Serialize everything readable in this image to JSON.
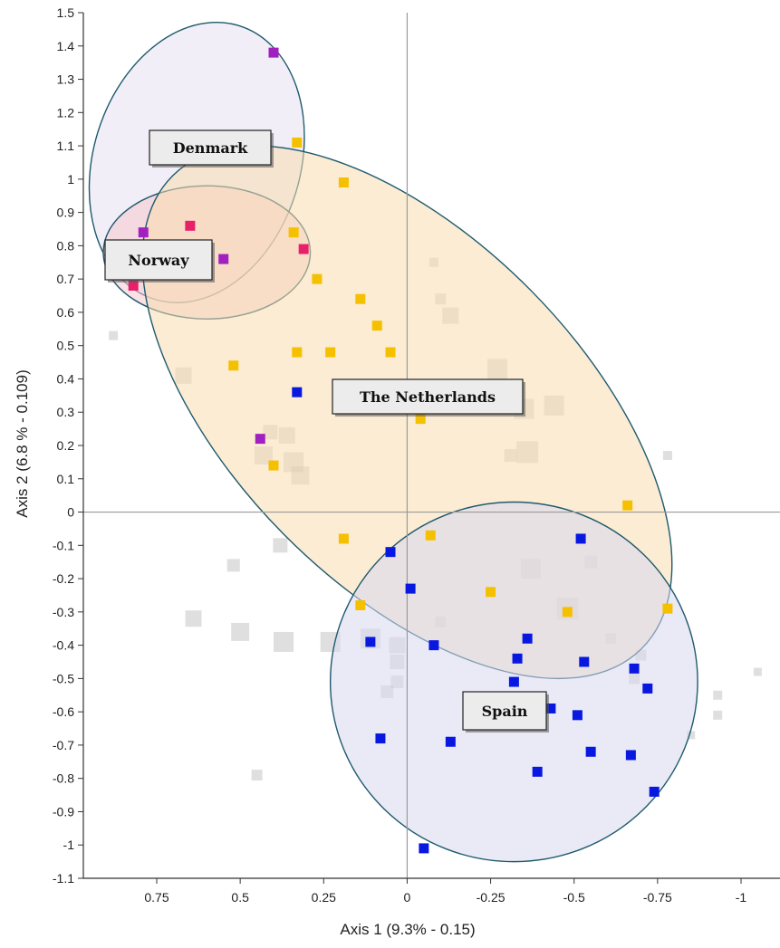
{
  "chart_data": {
    "type": "scatter",
    "title": "",
    "xlabel": "Axis 1 (9.3% - 0.15)",
    "ylabel": "Axis 2 (6.8 % - 0.109)",
    "x_axis_reversed": true,
    "xlim": [
      0.97,
      -1.1
    ],
    "ylim": [
      -1.15,
      1.5
    ],
    "x_ticks": [
      0.75,
      0.5,
      0.25,
      0,
      -0.25,
      -0.5,
      -0.75,
      -1
    ],
    "x_tick_labels": [
      "0.75",
      "0.5",
      "0.25",
      "0",
      "-0.25",
      "-0.5",
      "-0.75",
      "-1"
    ],
    "y_ticks": [
      1.5,
      1.4,
      1.3,
      1.2,
      1.1,
      1,
      0.9,
      0.8,
      0.7,
      0.6,
      0.5,
      0.4,
      0.3,
      0.2,
      0.1,
      0,
      -0.1,
      -0.2,
      -0.3,
      -0.4,
      -0.5,
      -0.6,
      -0.7,
      -0.8,
      -0.9,
      -1,
      -1.1
    ],
    "y_tick_labels": [
      "1.5",
      "1.4",
      "1.3",
      "1.2",
      "1.1",
      "1",
      "0.9",
      "0.8",
      "0.7",
      "0.6",
      "0.5",
      "0.4",
      "0.3",
      "0.2",
      "0.1",
      "0",
      "-0.1",
      "-0.2",
      "-0.3",
      "-0.4",
      "-0.5",
      "-0.6",
      "-0.7",
      "-0.8",
      "-0.9",
      "-1",
      "-1.1"
    ],
    "grid": false,
    "zero_lines": true,
    "groups": [
      {
        "label": "Denmark",
        "color": "#e8e0f0",
        "ellipse": {
          "cx": 0.63,
          "cy": 1.05,
          "rx": 0.31,
          "ry": 0.43,
          "angle": -0.3
        }
      },
      {
        "label": "Norway",
        "color": "#f8c8d0",
        "ellipse": {
          "cx": 0.6,
          "cy": 0.78,
          "rx": 0.31,
          "ry": 0.2,
          "angle": 0
        }
      },
      {
        "label": "The Netherlands",
        "color": "#f7ddaf",
        "ellipse": {
          "cx": 0.0,
          "cy": 0.3,
          "rx": 0.52,
          "ry": 1.0,
          "angle": 0.78
        }
      },
      {
        "label": "Spain",
        "color": "#d8d8f0",
        "ellipse": {
          "cx": -0.32,
          "cy": -0.51,
          "rx": 0.55,
          "ry": 0.54,
          "angle": 0
        }
      }
    ],
    "series": [
      {
        "name": "",
        "color": "#a020c0",
        "points": [
          [
            0.4,
            1.38
          ],
          [
            0.79,
            0.84
          ],
          [
            0.55,
            0.76
          ],
          [
            0.44,
            0.22
          ]
        ]
      },
      {
        "name": "",
        "color": "#e8206a",
        "points": [
          [
            0.65,
            0.86
          ],
          [
            0.31,
            0.79
          ],
          [
            0.82,
            0.68
          ]
        ]
      },
      {
        "name": "",
        "color": "#f5c000",
        "points": [
          [
            0.33,
            1.11
          ],
          [
            0.19,
            0.99
          ],
          [
            0.34,
            0.84
          ],
          [
            0.27,
            0.7
          ],
          [
            0.14,
            0.64
          ],
          [
            0.09,
            0.56
          ],
          [
            0.33,
            0.48
          ],
          [
            0.23,
            0.48
          ],
          [
            0.05,
            0.48
          ],
          [
            0.52,
            0.44
          ],
          [
            -0.04,
            0.28
          ],
          [
            0.4,
            0.14
          ],
          [
            -0.66,
            0.02
          ],
          [
            0.19,
            -0.08
          ],
          [
            -0.07,
            -0.07
          ],
          [
            -0.25,
            -0.24
          ],
          [
            0.14,
            -0.28
          ],
          [
            -0.48,
            -0.3
          ],
          [
            -0.78,
            -0.29
          ]
        ]
      },
      {
        "name": "",
        "color": "#0818e0",
        "points": [
          [
            0.33,
            0.36
          ],
          [
            0.05,
            -0.12
          ],
          [
            -0.52,
            -0.08
          ],
          [
            -0.01,
            -0.23
          ],
          [
            0.11,
            -0.39
          ],
          [
            -0.08,
            -0.4
          ],
          [
            -0.36,
            -0.38
          ],
          [
            -0.33,
            -0.44
          ],
          [
            -0.53,
            -0.45
          ],
          [
            -0.68,
            -0.47
          ],
          [
            -0.32,
            -0.51
          ],
          [
            -0.72,
            -0.53
          ],
          [
            -0.43,
            -0.59
          ],
          [
            -0.51,
            -0.61
          ],
          [
            0.08,
            -0.68
          ],
          [
            -0.13,
            -0.69
          ],
          [
            -0.55,
            -0.72
          ],
          [
            -0.67,
            -0.73
          ],
          [
            -0.39,
            -0.78
          ],
          [
            -0.74,
            -0.84
          ],
          [
            -0.05,
            -1.01
          ]
        ]
      }
    ],
    "background_points": [
      [
        0.88,
        0.53,
        10
      ],
      [
        0.67,
        0.41,
        18
      ],
      [
        0.41,
        0.24,
        16
      ],
      [
        0.36,
        0.23,
        18
      ],
      [
        0.43,
        0.17,
        20
      ],
      [
        0.34,
        0.15,
        22
      ],
      [
        0.32,
        0.11,
        20
      ],
      [
        -0.08,
        0.75,
        10
      ],
      [
        -0.1,
        0.64,
        12
      ],
      [
        -0.13,
        0.59,
        18
      ],
      [
        -0.27,
        0.43,
        22
      ],
      [
        -0.35,
        0.31,
        22
      ],
      [
        -0.44,
        0.32,
        22
      ],
      [
        -0.36,
        0.18,
        24
      ],
      [
        -0.31,
        0.17,
        14
      ],
      [
        -0.78,
        0.17,
        10
      ],
      [
        0.38,
        -0.1,
        16
      ],
      [
        0.52,
        -0.16,
        14
      ],
      [
        -0.37,
        -0.17,
        22
      ],
      [
        -0.55,
        -0.15,
        14
      ],
      [
        -0.48,
        -0.29,
        24
      ],
      [
        0.64,
        -0.32,
        18
      ],
      [
        0.5,
        -0.36,
        20
      ],
      [
        0.37,
        -0.39,
        22
      ],
      [
        0.23,
        -0.39,
        22
      ],
      [
        0.11,
        -0.38,
        22
      ],
      [
        0.03,
        -0.4,
        18
      ],
      [
        0.03,
        -0.45,
        16
      ],
      [
        0.03,
        -0.51,
        14
      ],
      [
        0.06,
        -0.54,
        14
      ],
      [
        -0.61,
        -0.38,
        12
      ],
      [
        -0.7,
        -0.43,
        12
      ],
      [
        -0.68,
        -0.5,
        12
      ],
      [
        -0.93,
        -0.55,
        10
      ],
      [
        -0.93,
        -0.61,
        10
      ],
      [
        -1.05,
        -0.48,
        9
      ],
      [
        -0.85,
        -0.67,
        9
      ],
      [
        0.45,
        -0.79,
        12
      ],
      [
        -0.1,
        -0.33,
        12
      ]
    ],
    "background_color": "#b8b8b8"
  }
}
